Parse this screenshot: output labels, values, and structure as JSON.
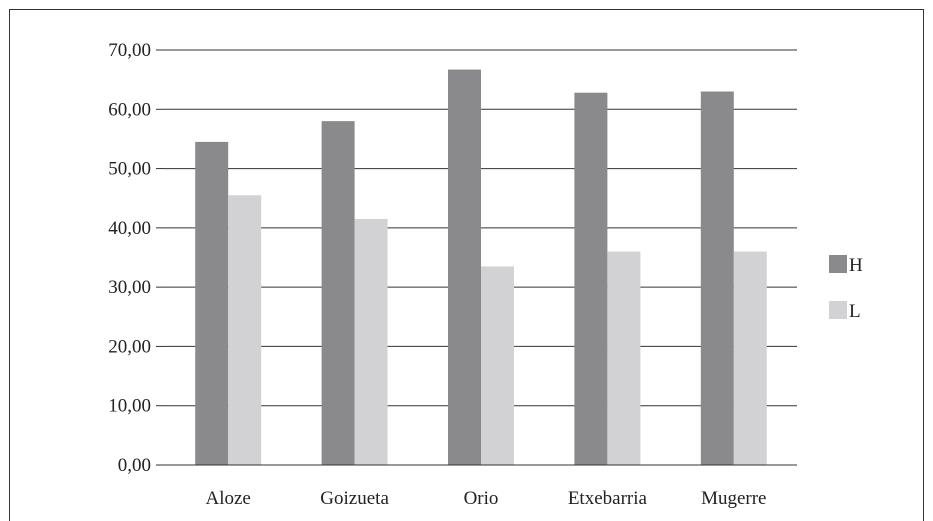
{
  "chart_data": {
    "type": "bar",
    "categories": [
      "Aloze",
      "Goizueta",
      "Orio",
      "Etxebarria",
      "Mugerre"
    ],
    "series": [
      {
        "name": "H",
        "values": [
          54.5,
          58.0,
          66.7,
          62.8,
          63.0
        ],
        "color": "#8a8a8c"
      },
      {
        "name": "L",
        "values": [
          45.5,
          41.5,
          33.5,
          36.0,
          36.0
        ],
        "color": "#d2d2d4"
      }
    ],
    "y_ticks": [
      "0,00",
      "10,00",
      "20,00",
      "30,00",
      "40,00",
      "50,00",
      "60,00",
      "70,00"
    ],
    "ylim": [
      0,
      70
    ],
    "grid": true,
    "legend_position": "right"
  }
}
